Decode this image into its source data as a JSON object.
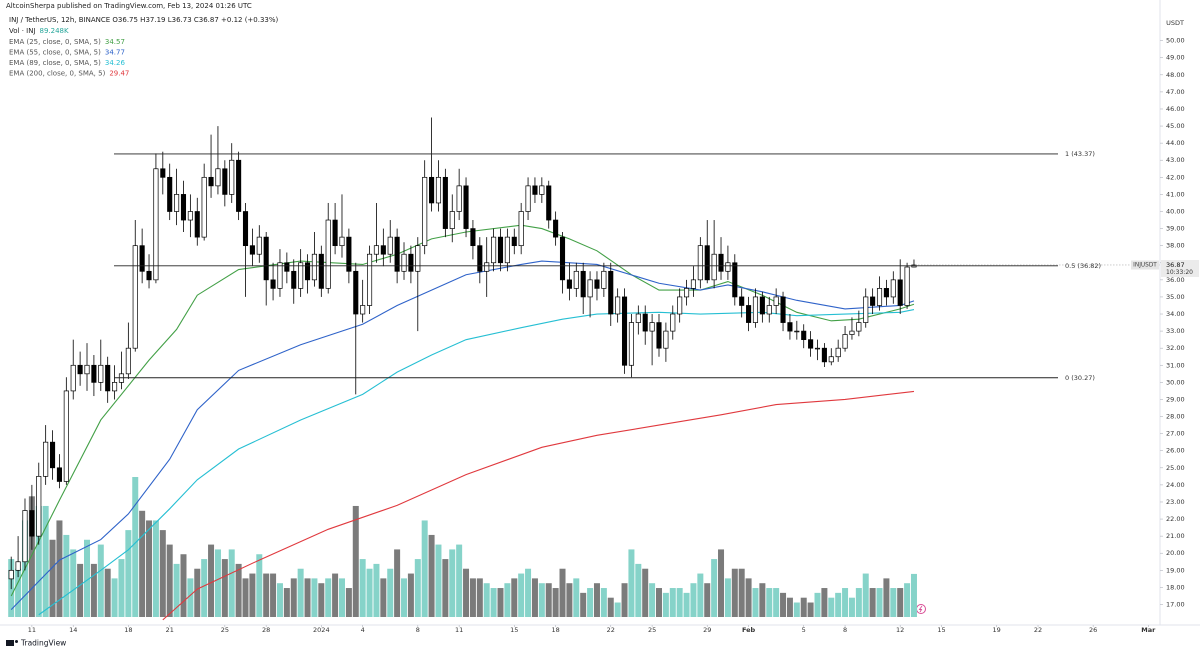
{
  "header": {
    "published": "AltcoinSherpa published on TradingView.com, Feb 13, 2024 01:26 UTC"
  },
  "footer": {
    "brand": "TradingView"
  },
  "chart_data": {
    "type": "candlestick",
    "symbol_line": "INJ / TetherUS, 12h, BINANCE O36.75 H37.19 L36.73 C36.87 +0.12 (+0.33%)",
    "volume_label": "Vol · INJ",
    "volume_last": "89.248K",
    "axis_unit": "USDT",
    "up_color": "#ffffff",
    "down_color": "#000000",
    "volume_up_color": "#86d3c9",
    "volume_down_color": "#7b7b7b",
    "xlim": [
      -0.9,
      166.7
    ],
    "ylim": [
      15.8,
      51.5
    ],
    "yticks": [
      {
        "value": 17,
        "label": "17.00"
      },
      {
        "value": 18,
        "label": "18.00"
      },
      {
        "value": 19,
        "label": "19.00"
      },
      {
        "value": 20,
        "label": "20.00"
      },
      {
        "value": 21,
        "label": "21.00"
      },
      {
        "value": 22,
        "label": "22.00"
      },
      {
        "value": 23,
        "label": "23.00"
      },
      {
        "value": 24,
        "label": "24.00"
      },
      {
        "value": 25,
        "label": "25.00"
      },
      {
        "value": 26,
        "label": "26.00"
      },
      {
        "value": 27,
        "label": "27.00"
      },
      {
        "value": 28,
        "label": "28.00"
      },
      {
        "value": 29,
        "label": "29.00"
      },
      {
        "value": 30,
        "label": "30.00"
      },
      {
        "value": 31,
        "label": "31.00"
      },
      {
        "value": 32,
        "label": "32.00"
      },
      {
        "value": 33,
        "label": "33.00"
      },
      {
        "value": 34,
        "label": "34.00"
      },
      {
        "value": 35,
        "label": "35.00"
      },
      {
        "value": 36,
        "label": "36.00"
      },
      {
        "value": 37,
        "label": "37.00"
      },
      {
        "value": 38,
        "label": "38.00"
      },
      {
        "value": 39,
        "label": "39.00"
      },
      {
        "value": 40,
        "label": "40.00"
      },
      {
        "value": 41,
        "label": "41.00"
      },
      {
        "value": 42,
        "label": "42.00"
      },
      {
        "value": 43,
        "label": "43.00"
      },
      {
        "value": 44,
        "label": "44.00"
      },
      {
        "value": 45,
        "label": "45.00"
      },
      {
        "value": 46,
        "label": "46.00"
      },
      {
        "value": 47,
        "label": "47.00"
      },
      {
        "value": 48,
        "label": "48.00"
      },
      {
        "value": 49,
        "label": "49.00"
      },
      {
        "value": 50,
        "label": "50.00"
      }
    ],
    "xticks": [
      {
        "value": 3,
        "label": "11"
      },
      {
        "value": 9,
        "label": "14"
      },
      {
        "value": 17,
        "label": "18"
      },
      {
        "value": 23,
        "label": "21"
      },
      {
        "value": 31,
        "label": "25"
      },
      {
        "value": 37,
        "label": "28"
      },
      {
        "value": 45,
        "label": "2024"
      },
      {
        "value": 51,
        "label": "4"
      },
      {
        "value": 59,
        "label": "8"
      },
      {
        "value": 65,
        "label": "11"
      },
      {
        "value": 73,
        "label": "15"
      },
      {
        "value": 79,
        "label": "18"
      },
      {
        "value": 87,
        "label": "22"
      },
      {
        "value": 93,
        "label": "25"
      },
      {
        "value": 101,
        "label": "29"
      },
      {
        "value": 107,
        "label": "Feb"
      },
      {
        "value": 115,
        "label": "5"
      },
      {
        "value": 121,
        "label": "8"
      },
      {
        "value": 129,
        "label": "12"
      },
      {
        "value": 135,
        "label": "15"
      },
      {
        "value": 143,
        "label": "19"
      },
      {
        "value": 149,
        "label": "22"
      },
      {
        "value": 157,
        "label": "26"
      },
      {
        "value": 165,
        "label": "Mar"
      }
    ],
    "levels": [
      {
        "value": 43.37,
        "label": "1 (43.37)"
      },
      {
        "value": 36.82,
        "label": "0.5 (36.82)"
      },
      {
        "value": 30.27,
        "label": "0 (30.27)"
      }
    ],
    "price_tag": {
      "symbol": "INJUSDT",
      "value": 36.87,
      "countdown": "10:33:20"
    },
    "candles": {
      "open": [
        18.5,
        19.0,
        19.5,
        22.5,
        21.0,
        24.5,
        26.5,
        25.0,
        24.2,
        29.5,
        31.0,
        30.5,
        31.0,
        30.0,
        31.0,
        29.5,
        30.0,
        30.5,
        32.0,
        38.0,
        36.5,
        36.0,
        42.5,
        42.0,
        40.0,
        41.0,
        39.5,
        40.0,
        38.5,
        42.0,
        41.5,
        42.5,
        41.0,
        43.0,
        40.0,
        38.0,
        37.5,
        38.5,
        36.0,
        35.5,
        37.0,
        36.5,
        35.5,
        37.0,
        36.0,
        37.5,
        35.5,
        39.5,
        38.0,
        38.5,
        36.5,
        34.0,
        34.5,
        37.5,
        38.0,
        37.5,
        38.5,
        36.5,
        37.5,
        36.5,
        38.0,
        42.0,
        40.5,
        42.0,
        39.0,
        40.0,
        41.5,
        39.0,
        38.0,
        36.5,
        37.0,
        38.5,
        37.0,
        38.5,
        38.0,
        40.0,
        41.5,
        41.0,
        41.5,
        39.5,
        38.5,
        36.0,
        35.5,
        36.5,
        35.0,
        36.0,
        35.5,
        36.5,
        34.0,
        35.0,
        31.0,
        33.5,
        34.0,
        33.0,
        33.5,
        32.0,
        33.0,
        34.0,
        35.0,
        35.5,
        36.0,
        38.0,
        36.0,
        37.5,
        36.5,
        37.0,
        35.0,
        34.5,
        33.5,
        35.0,
        34.0,
        34.5,
        35.0,
        33.5,
        33.0,
        33.0,
        32.5,
        32.0,
        32.0,
        31.2,
        31.5,
        32.0,
        32.8,
        33.0,
        33.5,
        35.0,
        34.5,
        35.5,
        35.0,
        36.0,
        34.5,
        36.75
      ],
      "high": [
        19.8,
        21.0,
        23.2,
        24.0,
        25.3,
        27.5,
        27.2,
        25.8,
        30.3,
        32.5,
        31.8,
        32.3,
        31.6,
        32.5,
        31.5,
        31.0,
        31.8,
        33.5,
        39.5,
        39.0,
        37.5,
        43.4,
        43.5,
        42.8,
        42.5,
        41.8,
        41.0,
        40.8,
        42.8,
        44.5,
        45.0,
        43.0,
        44.0,
        43.5,
        40.5,
        39.0,
        39.2,
        38.8,
        37.0,
        37.8,
        37.6,
        37.2,
        37.8,
        37.5,
        38.8,
        38.0,
        40.5,
        40.5,
        41.0,
        39.0,
        37.0,
        36.0,
        38.0,
        40.5,
        39.0,
        39.5,
        39.0,
        38.2,
        38.0,
        38.5,
        43.0,
        45.5,
        43.0,
        42.5,
        41.0,
        42.5,
        42.0,
        39.5,
        38.5,
        38.5,
        39.0,
        39.0,
        39.0,
        39.0,
        40.5,
        42.0,
        42.0,
        42.0,
        41.8,
        40.0,
        38.8,
        37.0,
        37.0,
        37.0,
        36.5,
        36.5,
        37.0,
        37.0,
        35.5,
        35.5,
        34.0,
        34.5,
        34.5,
        34.0,
        34.0,
        33.5,
        34.5,
        35.5,
        36.0,
        36.8,
        38.5,
        39.5,
        39.5,
        38.5,
        38.0,
        37.5,
        35.5,
        35.0,
        35.5,
        35.3,
        35.0,
        35.5,
        35.3,
        34.0,
        33.6,
        33.4,
        33.0,
        32.5,
        32.3,
        32.0,
        32.5,
        33.3,
        33.8,
        34.2,
        35.5,
        35.5,
        36.2,
        36.0,
        36.5,
        37.2,
        37.0,
        37.19
      ],
      "low": [
        17.9,
        18.6,
        19.0,
        20.2,
        20.5,
        24.0,
        24.3,
        23.8,
        24.0,
        29.0,
        29.8,
        29.5,
        29.2,
        29.5,
        28.8,
        29.0,
        29.6,
        30.2,
        31.8,
        35.8,
        35.5,
        35.8,
        41.0,
        39.5,
        39.2,
        38.8,
        38.5,
        38.0,
        38.3,
        40.8,
        41.0,
        40.3,
        40.5,
        39.5,
        35.0,
        36.8,
        37.0,
        34.5,
        34.8,
        35.0,
        35.8,
        34.6,
        35.0,
        35.2,
        35.6,
        35.0,
        35.2,
        37.5,
        37.3,
        35.8,
        29.3,
        33.5,
        34.0,
        37.0,
        36.8,
        37.0,
        35.8,
        36.0,
        35.8,
        33.0,
        37.5,
        40.0,
        40.0,
        38.5,
        38.2,
        39.5,
        38.5,
        37.2,
        35.8,
        35.0,
        36.5,
        36.5,
        36.5,
        37.5,
        37.5,
        39.5,
        40.5,
        40.5,
        39.0,
        38.0,
        35.2,
        34.8,
        35.0,
        34.0,
        33.8,
        34.8,
        35.0,
        33.3,
        33.5,
        30.5,
        30.3,
        32.8,
        32.2,
        31.0,
        31.5,
        31.2,
        32.5,
        33.5,
        34.5,
        35.0,
        35.5,
        35.8,
        35.5,
        36.0,
        36.0,
        34.5,
        33.8,
        33.0,
        33.2,
        33.5,
        33.5,
        34.0,
        33.0,
        32.5,
        32.5,
        32.0,
        31.5,
        31.3,
        30.9,
        31.0,
        31.2,
        31.8,
        32.5,
        32.7,
        33.2,
        34.0,
        34.2,
        34.5,
        34.6,
        34.0,
        34.3,
        36.73
      ],
      "close": [
        19.0,
        19.5,
        22.5,
        21.0,
        24.5,
        26.5,
        25.0,
        24.2,
        29.5,
        31.0,
        30.5,
        31.0,
        30.0,
        31.0,
        29.5,
        30.0,
        30.5,
        32.0,
        38.0,
        36.5,
        36.0,
        42.5,
        42.0,
        40.0,
        41.0,
        39.5,
        40.0,
        38.5,
        42.0,
        41.5,
        42.5,
        41.0,
        43.0,
        40.0,
        38.0,
        37.5,
        38.5,
        36.0,
        35.5,
        37.0,
        36.5,
        35.5,
        37.0,
        36.0,
        37.5,
        35.5,
        39.5,
        38.0,
        38.5,
        36.5,
        34.0,
        34.5,
        37.5,
        38.0,
        37.5,
        38.5,
        36.5,
        37.5,
        36.5,
        38.0,
        42.0,
        40.5,
        42.0,
        39.0,
        40.0,
        41.5,
        39.0,
        38.0,
        36.5,
        37.0,
        38.5,
        37.0,
        38.5,
        38.0,
        40.0,
        41.5,
        41.0,
        41.5,
        39.5,
        38.5,
        36.0,
        35.5,
        36.5,
        35.0,
        36.0,
        35.5,
        36.5,
        34.0,
        35.0,
        31.0,
        33.5,
        34.0,
        33.0,
        33.5,
        32.0,
        33.0,
        34.0,
        35.0,
        35.5,
        36.0,
        38.0,
        36.0,
        37.5,
        36.5,
        37.0,
        35.0,
        34.5,
        33.5,
        35.0,
        34.0,
        34.5,
        35.0,
        33.5,
        33.0,
        33.0,
        32.5,
        32.0,
        32.0,
        31.2,
        31.5,
        32.0,
        32.8,
        33.0,
        33.5,
        35.0,
        34.5,
        35.5,
        35.0,
        36.0,
        34.5,
        36.75,
        36.87
      ],
      "volume": [
        120,
        100,
        200,
        250,
        230,
        230,
        160,
        200,
        170,
        140,
        110,
        160,
        110,
        150,
        100,
        80,
        120,
        180,
        290,
        220,
        200,
        200,
        180,
        150,
        110,
        130,
        80,
        100,
        120,
        150,
        140,
        120,
        140,
        110,
        80,
        90,
        130,
        90,
        90,
        70,
        60,
        80,
        100,
        80,
        80,
        70,
        80,
        90,
        80,
        60,
        230,
        120,
        100,
        110,
        80,
        100,
        140,
        80,
        90,
        120,
        200,
        170,
        150,
        120,
        140,
        150,
        100,
        80,
        80,
        70,
        60,
        60,
        70,
        80,
        90,
        100,
        80,
        70,
        70,
        60,
        100,
        70,
        80,
        50,
        60,
        70,
        60,
        40,
        30,
        70,
        140,
        110,
        100,
        70,
        60,
        50,
        60,
        60,
        50,
        70,
        90,
        70,
        120,
        140,
        80,
        100,
        100,
        80,
        60,
        70,
        60,
        60,
        50,
        40,
        30,
        40,
        30,
        50,
        60,
        40,
        50,
        60,
        40,
        60,
        90,
        60,
        60,
        80,
        60,
        60,
        70,
        89.248
      ]
    },
    "series": [
      {
        "name": "EMA (25, close, 0, SMA, 5)",
        "color": "#43a047",
        "last_label": "34.57",
        "x": [
          0,
          7,
          13,
          20,
          24,
          27,
          33,
          42,
          51,
          56,
          61,
          66,
          74,
          77,
          81,
          85,
          90,
          94,
          100,
          104,
          109,
          114,
          119,
          123,
          129,
          131
        ],
        "values": [
          17.5,
          23.1,
          27.8,
          31.3,
          33.1,
          35.1,
          36.6,
          37.1,
          36.9,
          37.5,
          38.4,
          38.8,
          39.2,
          39.0,
          38.4,
          37.7,
          36.3,
          35.4,
          35.4,
          35.9,
          35.1,
          34.1,
          33.6,
          33.7,
          34.3,
          34.57
        ]
      },
      {
        "name": "EMA (55, close, 0, SMA, 5)",
        "color": "#2f63c9",
        "last_label": "34.77",
        "x": [
          0,
          7,
          13,
          17,
          23,
          27,
          33,
          42,
          51,
          56,
          61,
          66,
          74,
          77,
          85,
          94,
          100,
          104,
          109,
          114,
          121,
          129,
          131
        ],
        "values": [
          16.7,
          19.6,
          20.8,
          22.3,
          25.5,
          28.4,
          30.7,
          32.2,
          33.4,
          34.5,
          35.4,
          36.3,
          36.9,
          37.1,
          36.9,
          35.8,
          35.4,
          35.7,
          35.3,
          34.8,
          34.3,
          34.5,
          34.77
        ]
      },
      {
        "name": "EMA (89, close, 0, SMA, 5)",
        "color": "#26bfd3",
        "last_label": "34.26",
        "x": [
          4,
          13,
          17,
          23,
          27,
          33,
          42,
          51,
          56,
          61,
          66,
          74,
          80,
          85,
          94,
          100,
          109,
          114,
          121,
          129,
          131
        ],
        "values": [
          16.4,
          19.0,
          20.2,
          22.6,
          24.3,
          26.1,
          27.8,
          29.3,
          30.6,
          31.6,
          32.5,
          33.2,
          33.7,
          34.0,
          34.1,
          34.0,
          34.1,
          33.9,
          34.0,
          34.1,
          34.26
        ]
      },
      {
        "name": "EMA (200, close, 0, SMA, 5)",
        "color": "#e0393e",
        "last_label": "29.47",
        "x": [
          22,
          27,
          36,
          46,
          56,
          66,
          77,
          85,
          94,
          103,
          111,
          121,
          131
        ],
        "values": [
          16.1,
          17.9,
          19.6,
          21.4,
          22.8,
          24.6,
          26.2,
          26.9,
          27.5,
          28.1,
          28.7,
          29.0,
          29.47
        ]
      }
    ]
  }
}
